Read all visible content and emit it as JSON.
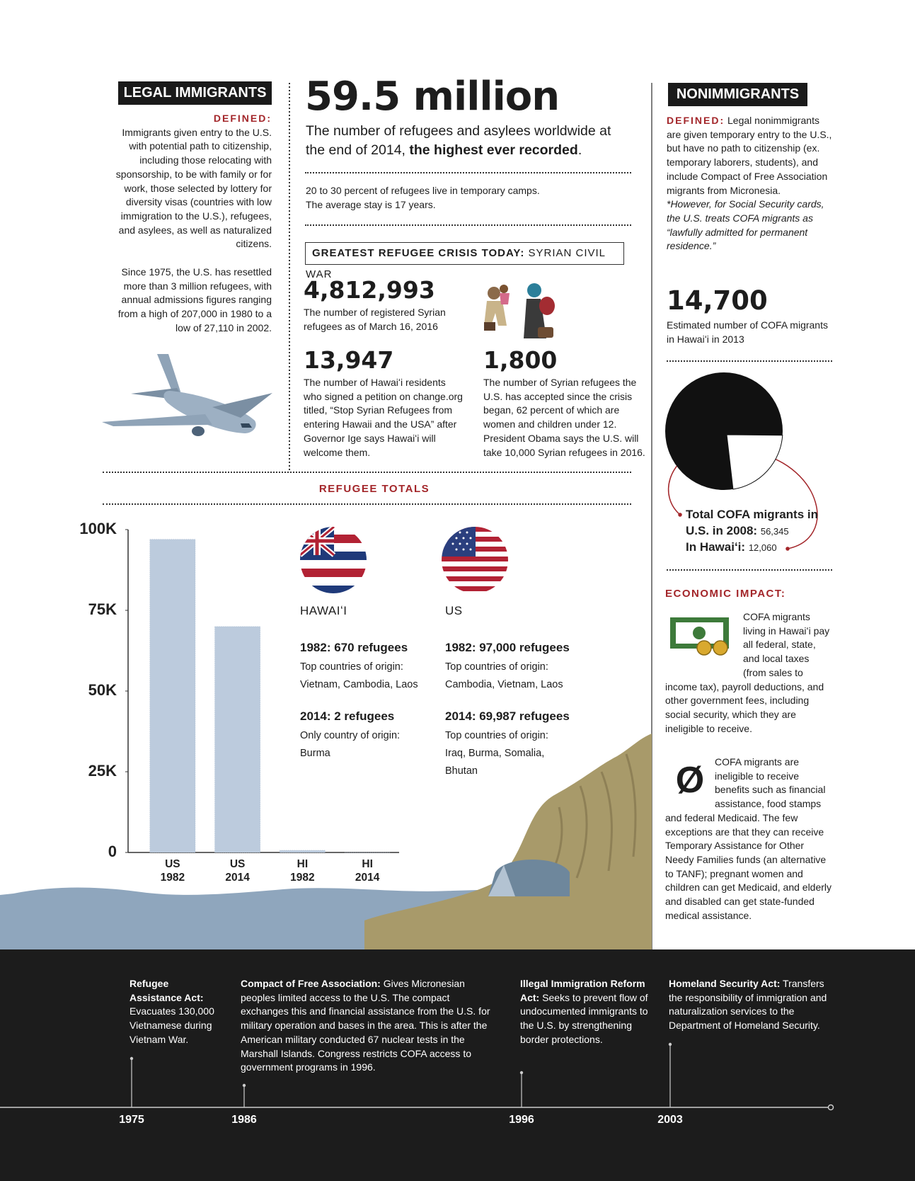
{
  "legal_immigrants": {
    "heading": "LEGAL IMMIGRANTS",
    "defined_label": "DEFINED:",
    "definition": "Immigrants given entry to the U.S. with potential path to citizenship, including those relocating with sponsorship, to be with family or for work, those selected by lottery for diversity visas (countries with low immigration to the U.S.), refugees, and asylees, as well as naturalized citizens.",
    "resettlement": "Since 1975, the U.S. has resettled more than 3 million refugees, with annual admissions figures ranging from a high of 207,000 in 1980 to a low of 27,110 in 2002."
  },
  "worldwide": {
    "headline": "59.5 million",
    "text": "The number of refugees and asylees worldwide at the end of 2014,",
    "emphasis": "the highest ever recorded",
    "end": ".",
    "camps": "20 to 30 percent of refugees live in temporary camps.",
    "stay": "The average stay is 17 years."
  },
  "syrian_crisis": {
    "label": "GREATEST REFUGEE CRISIS TODAY:",
    "name": "SYRIAN CIVIL WAR",
    "stats": [
      {
        "figure": "4,812,993",
        "text": "The number of registered Syrian refugees as of March 16, 2016"
      },
      {
        "figure": "13,947",
        "text": "The number of Hawaiʻi residents who signed a petition on change.org titled, “Stop Syrian Refugees from entering Hawaii and the USA” after Governor Ige says Hawaiʻi will welcome them."
      },
      {
        "figure": "1,800",
        "text": "The number of Syrian refugees the U.S. has accepted since the crisis began, 62 percent of which are women and children under 12. President Obama says the U.S. will take 10,000 Syrian refugees in 2016."
      }
    ]
  },
  "nonimmigrants": {
    "heading": "NONIMMIGRANTS",
    "defined_label": "DEFINED:",
    "definition": "Legal nonimmigrants are given temporary entry to the U.S., but have no path to citizenship (ex. temporary laborers, students), and include Compact of Free Association migrants from Micronesia.",
    "note": "*However, for Social Security cards, the U.S. treats COFA migrants as “lawfully admitted for permanent residence.”",
    "figure": "14,700",
    "figure_text": "Estimated number of COFA migrants in Hawaiʻi in 2013"
  },
  "refugee_totals": {
    "heading": "REFUGEE TOTALS",
    "regions": [
      {
        "name": "HAWAIʻI",
        "entries": [
          {
            "title": "1982: 670 refugees",
            "label": "Top countries of origin:",
            "countries": "Vietnam, Cambodia, Laos"
          },
          {
            "title": "2014: 2 refugees",
            "label": "Only country of origin:",
            "countries": "Burma"
          }
        ]
      },
      {
        "name": "US",
        "entries": [
          {
            "title": "1982: 97,000 refugees",
            "label": "Top countries of origin:",
            "countries": "Cambodia, Vietnam, Laos"
          },
          {
            "title": "2014: 69,987 refugees",
            "label": "Top countries of origin:",
            "countries": "Iraq, Burma, Somalia, Bhutan"
          }
        ]
      }
    ]
  },
  "economic_impact": {
    "heading": "ECONOMIC IMPACT:",
    "symbol": "Ø",
    "paragraphs": [
      "COFA migrants living in Hawaiʻi pay all federal, state, and local taxes (from sales to income tax), payroll deductions, and other government fees, including social security, which they are ineligible to receive.",
      "COFA migrants are ineligible to receive benefits such as financial assistance, food stamps and federal Medicaid. The few exceptions are that they can receive Temporary Assistance for Other Needy Families funds (an alternative to TANF); pregnant women and children can get Medicaid, and elderly and disabled can get state-funded medical assistance."
    ]
  },
  "timeline": {
    "events": [
      {
        "year": "1975",
        "title": "Refugee Assistance Act:",
        "text": "Evacuates 130,000 Vietnamese during Vietnam War."
      },
      {
        "year": "1986",
        "title": "Compact of Free Association:",
        "text": "Gives Micronesian peoples limited access to the U.S. The compact exchanges this and financial assistance from the U.S. for military operation and bases in the area. This is after the American military conducted 67 nuclear tests in the Marshall Islands. Congress restricts COFA access to government programs in 1996."
      },
      {
        "year": "1996",
        "title": "Illegal Immigration Reform Act:",
        "text": "Seeks to prevent flow of undocumented immigrants to the U.S. by strengthening border protections."
      },
      {
        "year": "2003",
        "title": "Homeland Security Act:",
        "text": "Transfers the responsibility of immigration and naturalization services to the Department of Homeland Security."
      }
    ]
  },
  "chart_data": [
    {
      "type": "bar",
      "categories": [
        "US 1982",
        "US 2014",
        "HI 1982",
        "HI 2014"
      ],
      "values": [
        97000,
        69987,
        670,
        2
      ],
      "color": "#bccbdd",
      "ylim": [
        0,
        100000
      ],
      "yticks": [
        0,
        {
          "value": 25000,
          "label": "25K"
        },
        {
          "value": 50000,
          "label": "50K"
        },
        {
          "value": 75000,
          "label": "75K"
        },
        {
          "value": 100000,
          "label": "100K"
        }
      ]
    },
    {
      "type": "pie",
      "labels": [
        "Total COFA migrants in U.S. in 2008:",
        "In Hawaiʻi:"
      ],
      "values": [
        56345,
        12060
      ],
      "value_labels": [
        "56,345",
        "12,060"
      ],
      "colors": [
        "#111111",
        "#ffffff"
      ]
    }
  ]
}
